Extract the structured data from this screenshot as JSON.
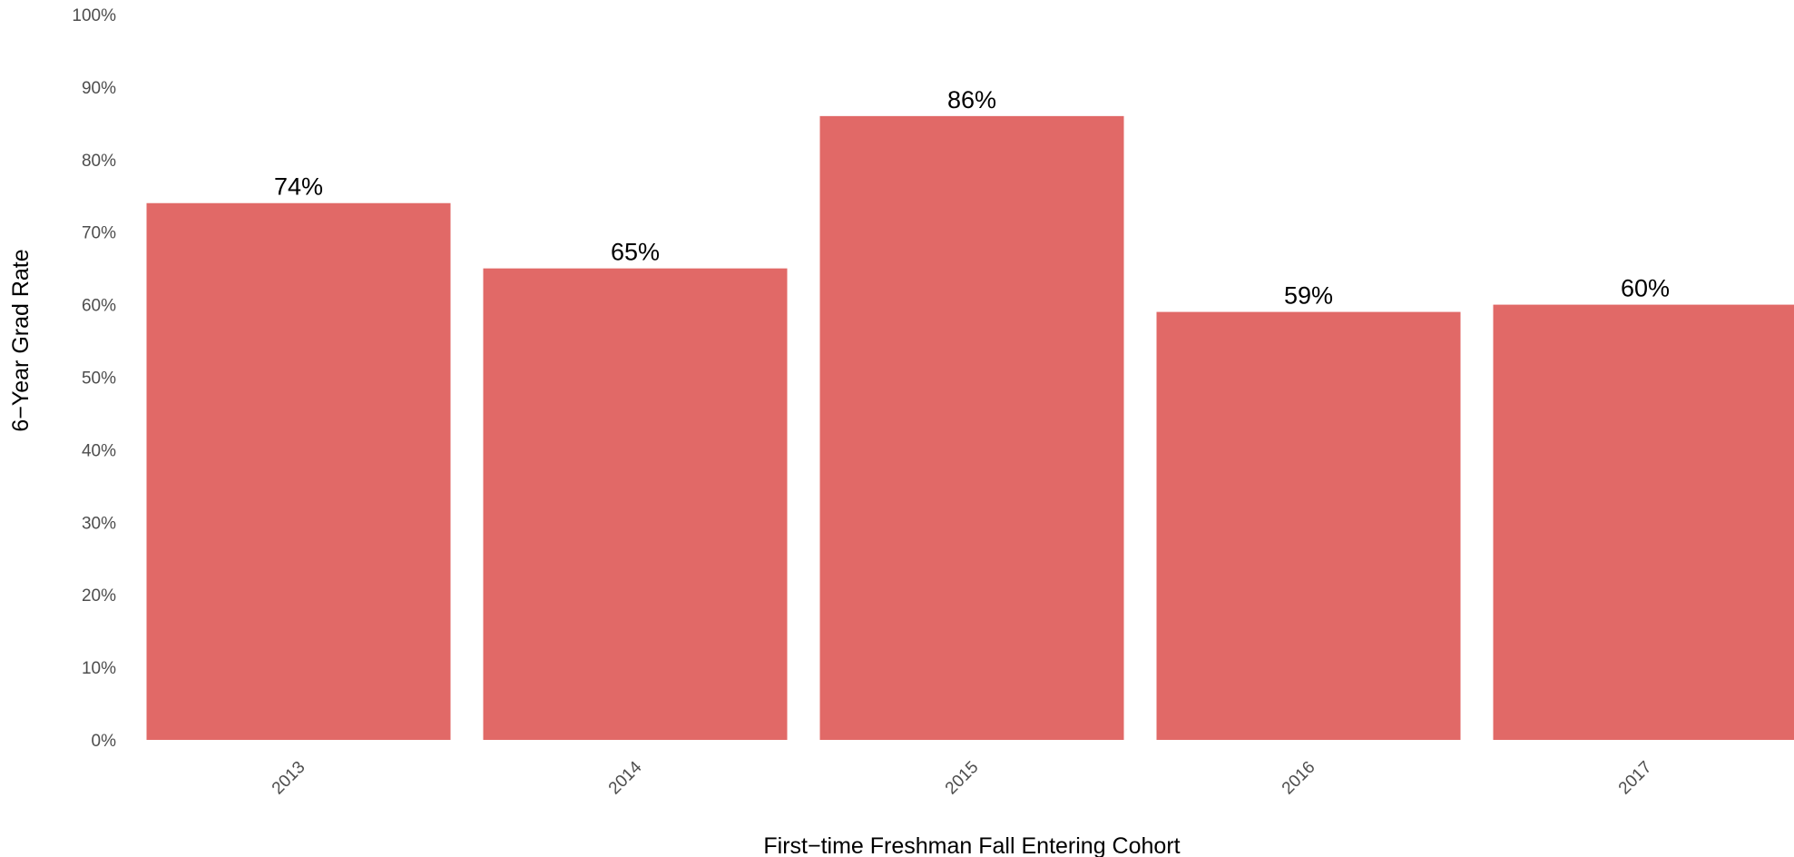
{
  "chart_data": {
    "type": "bar",
    "title": "",
    "xlabel": "First−time Freshman Fall Entering Cohort",
    "ylabel": "6−Year Grad Rate",
    "categories": [
      "2013",
      "2014",
      "2015",
      "2016",
      "2017"
    ],
    "values": [
      74,
      65,
      86,
      59,
      60
    ],
    "data_labels": [
      "74%",
      "65%",
      "86%",
      "59%",
      "60%"
    ],
    "ylim": [
      0,
      100
    ],
    "y_ticks": [
      0,
      10,
      20,
      30,
      40,
      50,
      60,
      70,
      80,
      90,
      100
    ],
    "y_tick_labels": [
      "0%",
      "10%",
      "20%",
      "30%",
      "40%",
      "50%",
      "60%",
      "70%",
      "80%",
      "90%",
      "100%"
    ],
    "grid": false,
    "legend": "none",
    "bar_color": "#e16967"
  }
}
